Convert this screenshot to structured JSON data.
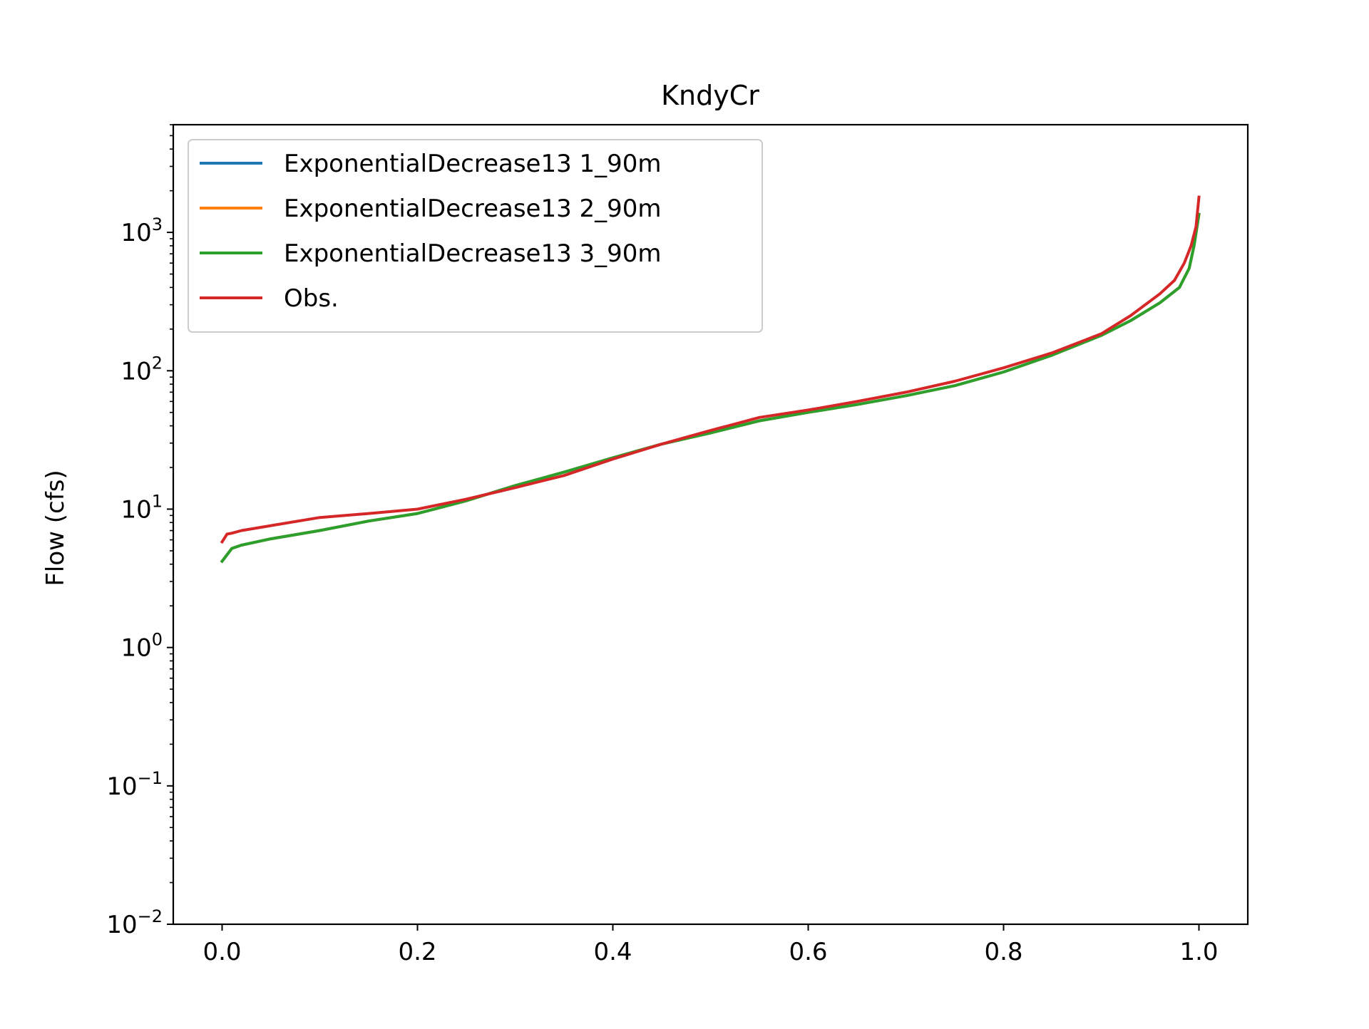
{
  "chart_data": {
    "type": "line",
    "title": "KndyCr",
    "xlabel": "",
    "ylabel": "Flow (cfs)",
    "xlim": [
      -0.05,
      1.05
    ],
    "ylim": [
      0.01,
      6000
    ],
    "y_scale": "log",
    "grid": false,
    "legend_position": "top-left",
    "x_ticks": [
      {
        "value": 0.0,
        "label": "0.0"
      },
      {
        "value": 0.2,
        "label": "0.2"
      },
      {
        "value": 0.4,
        "label": "0.4"
      },
      {
        "value": 0.6,
        "label": "0.6"
      },
      {
        "value": 0.8,
        "label": "0.8"
      },
      {
        "value": 1.0,
        "label": "1.0"
      }
    ],
    "y_ticks": [
      {
        "value": 0.01,
        "base": "10",
        "exp": "−2"
      },
      {
        "value": 0.1,
        "base": "10",
        "exp": "−1"
      },
      {
        "value": 1,
        "base": "10",
        "exp": "0"
      },
      {
        "value": 10,
        "base": "10",
        "exp": "1"
      },
      {
        "value": 100,
        "base": "10",
        "exp": "2"
      },
      {
        "value": 1000,
        "base": "10",
        "exp": "3"
      }
    ],
    "series": [
      {
        "name": "ExponentialDecrease13 1_90m",
        "color": "#1f77b4",
        "x": [
          0.0,
          0.01,
          0.02,
          0.05,
          0.1,
          0.15,
          0.2,
          0.25,
          0.3,
          0.35,
          0.4,
          0.45,
          0.5,
          0.55,
          0.6,
          0.65,
          0.7,
          0.75,
          0.8,
          0.85,
          0.9,
          0.93,
          0.96,
          0.98,
          0.99,
          0.995,
          1.0
        ],
        "y": [
          4.2,
          5.2,
          5.5,
          6.1,
          7.0,
          8.2,
          9.3,
          11.5,
          14.8,
          18.5,
          23.5,
          29.5,
          35.5,
          43.5,
          50.0,
          57.0,
          66.0,
          78.0,
          98.0,
          130.0,
          180.0,
          230.0,
          310.0,
          400.0,
          550.0,
          800.0,
          1350.0
        ]
      },
      {
        "name": "ExponentialDecrease13 2_90m",
        "color": "#ff7f0e",
        "x": [
          0.0,
          0.01,
          0.02,
          0.05,
          0.1,
          0.15,
          0.2,
          0.25,
          0.3,
          0.35,
          0.4,
          0.45,
          0.5,
          0.55,
          0.6,
          0.65,
          0.7,
          0.75,
          0.8,
          0.85,
          0.9,
          0.93,
          0.96,
          0.98,
          0.99,
          0.995,
          1.0
        ],
        "y": [
          4.2,
          5.2,
          5.5,
          6.1,
          7.0,
          8.2,
          9.3,
          11.5,
          14.8,
          18.5,
          23.5,
          29.5,
          35.5,
          43.5,
          50.0,
          57.0,
          66.0,
          78.0,
          98.0,
          130.0,
          180.0,
          230.0,
          310.0,
          400.0,
          550.0,
          800.0,
          1350.0
        ]
      },
      {
        "name": "ExponentialDecrease13 3_90m",
        "color": "#2ca02c",
        "x": [
          0.0,
          0.01,
          0.02,
          0.05,
          0.1,
          0.15,
          0.2,
          0.25,
          0.3,
          0.35,
          0.4,
          0.45,
          0.5,
          0.55,
          0.6,
          0.65,
          0.7,
          0.75,
          0.8,
          0.85,
          0.9,
          0.93,
          0.96,
          0.98,
          0.99,
          0.995,
          1.0
        ],
        "y": [
          4.2,
          5.2,
          5.5,
          6.1,
          7.0,
          8.2,
          9.3,
          11.5,
          14.8,
          18.5,
          23.5,
          29.5,
          35.5,
          43.5,
          50.0,
          57.0,
          66.0,
          78.0,
          98.0,
          130.0,
          180.0,
          230.0,
          310.0,
          400.0,
          550.0,
          800.0,
          1350.0
        ]
      },
      {
        "name": "Obs.",
        "color": "#d62728",
        "x": [
          0.0,
          0.005,
          0.01,
          0.02,
          0.05,
          0.1,
          0.15,
          0.2,
          0.25,
          0.3,
          0.35,
          0.4,
          0.45,
          0.5,
          0.55,
          0.6,
          0.65,
          0.7,
          0.75,
          0.8,
          0.85,
          0.9,
          0.93,
          0.96,
          0.975,
          0.985,
          0.992,
          0.997,
          1.0
        ],
        "y": [
          5.8,
          6.6,
          6.7,
          7.0,
          7.6,
          8.7,
          9.3,
          10.0,
          11.8,
          14.3,
          17.5,
          23.0,
          29.5,
          37.0,
          46.0,
          52.0,
          60.0,
          70.0,
          84.0,
          105.0,
          135.0,
          185.0,
          250.0,
          360.0,
          450.0,
          600.0,
          800.0,
          1100.0,
          1800.0
        ]
      }
    ]
  }
}
